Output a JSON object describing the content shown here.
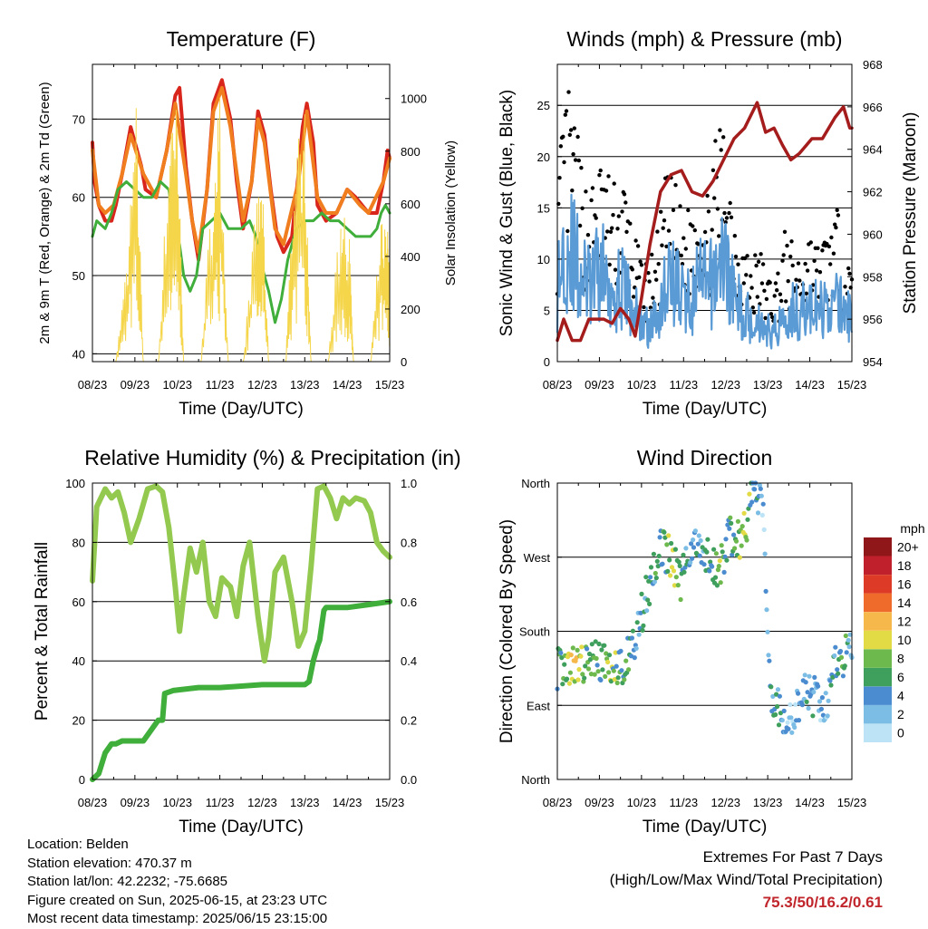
{
  "info": {
    "location": "Location: Belden",
    "elevation": "Station elevation: 470.37 m",
    "latlon": "Station lat/lon: 42.2232; -75.6685",
    "created": "Figure created on Sun, 2025-06-15, at 23:23 UTC",
    "recent": "Most recent data timestamp: 2025/06/15 23:15:00"
  },
  "extremes": {
    "title": "Extremes For Past 7 Days",
    "subtitle": "(High/Low/Max Wind/Total Precipitation)",
    "values": "75.3/50/16.2/0.61"
  },
  "colors": {
    "t2m": "#d9261c",
    "t9m": "#f07d1e",
    "dewpoint": "#3fae3a",
    "solar": "#f5d54a",
    "gust": "#000000",
    "sonic": "#5b9bd5",
    "pressure": "#a51c1c",
    "rh": "#92c94e",
    "precip": "#3fae3a"
  },
  "chart_data": [
    {
      "type": "line",
      "title": "Temperature (F)",
      "xlabel": "Time (Day/UTC)",
      "ylabel": "2m & 9m T (Red, Orange) & 2m Td (Green)",
      "ylabel_right": "Solar Insolation (Yellow)",
      "x_ticks": [
        "08/23",
        "09/23",
        "10/23",
        "11/23",
        "12/23",
        "13/23",
        "14/23",
        "15/23"
      ],
      "xlim": [
        0,
        7
      ],
      "ylim": [
        39,
        77
      ],
      "yticks": [
        40,
        50,
        60,
        70
      ],
      "ylim_right": [
        0,
        1130
      ],
      "yticks_right": [
        0,
        200,
        400,
        600,
        800,
        1000
      ],
      "grid": true,
      "series": [
        {
          "key": "t2m",
          "axis": "left",
          "x": [
            0,
            0.05,
            0.15,
            0.3,
            0.45,
            0.55,
            0.7,
            0.9,
            1.15,
            1.25,
            1.5,
            1.75,
            1.95,
            2.05,
            2.2,
            2.35,
            2.5,
            2.7,
            2.85,
            3.05,
            3.25,
            3.4,
            3.55,
            3.75,
            3.9,
            4.05,
            4.2,
            4.35,
            4.5,
            4.7,
            4.85,
            4.95,
            5.05,
            5.2,
            5.3,
            5.5,
            5.75,
            6.0,
            6.2,
            6.35,
            6.5,
            6.7,
            6.85,
            6.95,
            7.0
          ],
          "y": [
            67,
            62,
            59,
            57,
            57,
            59,
            63,
            69,
            64,
            61,
            60,
            66,
            73,
            74,
            64,
            57,
            52,
            61,
            72,
            75,
            70,
            62,
            56,
            62,
            71,
            68,
            61,
            55,
            53,
            55,
            63,
            69,
            72,
            67,
            59,
            57,
            58,
            61,
            60,
            59,
            58,
            58,
            62,
            66,
            65
          ]
        },
        {
          "key": "t9m",
          "axis": "left",
          "x": [
            0,
            0.15,
            0.3,
            0.5,
            0.7,
            0.9,
            1.2,
            1.5,
            1.75,
            1.95,
            2.2,
            2.35,
            2.5,
            2.7,
            2.85,
            3.05,
            3.25,
            3.55,
            3.75,
            3.9,
            4.05,
            4.3,
            4.5,
            4.85,
            5.05,
            5.3,
            5.5,
            5.75,
            6.0,
            6.3,
            6.5,
            6.85,
            7.0
          ],
          "y": [
            66,
            59,
            58,
            59,
            63,
            68,
            63,
            60,
            66,
            72,
            63,
            57,
            53,
            61,
            71,
            74,
            69,
            57,
            62,
            70,
            67,
            56,
            54,
            62,
            71,
            60,
            58,
            58,
            61,
            59,
            58,
            62,
            65
          ]
        },
        {
          "key": "dewpoint",
          "axis": "left",
          "x": [
            0,
            0.1,
            0.3,
            0.45,
            0.6,
            0.8,
            1.0,
            1.2,
            1.4,
            1.6,
            1.8,
            1.95,
            2.05,
            2.15,
            2.3,
            2.45,
            2.6,
            2.8,
            3.0,
            3.2,
            3.5,
            3.7,
            3.85,
            3.95,
            4.05,
            4.15,
            4.3,
            4.45,
            4.6,
            4.8,
            5.0,
            5.2,
            5.4,
            5.6,
            5.8,
            6.0,
            6.2,
            6.4,
            6.55,
            6.7,
            6.8,
            6.9,
            7.0
          ],
          "y": [
            55,
            57,
            56,
            58,
            61,
            62,
            61,
            60,
            60,
            62,
            61,
            55,
            54,
            50,
            48,
            50,
            56,
            57,
            58,
            56,
            56,
            57,
            55,
            52,
            50,
            48,
            44,
            47,
            52,
            56,
            57,
            57,
            58,
            57,
            57,
            56,
            55,
            55,
            55,
            56,
            58,
            59,
            58
          ]
        },
        {
          "key": "solar",
          "axis": "right",
          "style": "daily spikes",
          "x": [
            0.55,
            0.8,
            1.03,
            1.2,
            1.55,
            1.8,
            2.0,
            2.15,
            2.55,
            2.85,
            3.0,
            3.2,
            3.55,
            3.85,
            4.0,
            4.15,
            4.55,
            4.75,
            5.0,
            5.15,
            5.55,
            5.85,
            6.05,
            6.15,
            6.55,
            6.8,
            6.95,
            7.0
          ],
          "y": [
            0,
            380,
            1000,
            0,
            0,
            860,
            1000,
            0,
            0,
            780,
            1040,
            0,
            0,
            620,
            700,
            0,
            0,
            800,
            980,
            0,
            0,
            600,
            480,
            0,
            0,
            580,
            520,
            300
          ]
        }
      ]
    },
    {
      "type": "scatter",
      "title": "Winds (mph) & Pressure (mb)",
      "xlabel": "Time (Day/UTC)",
      "ylabel": "Sonic Wind & Gust (Blue, Black)",
      "ylabel_right": "Station Pressure (Maroon)",
      "x_ticks": [
        "08/23",
        "09/23",
        "10/23",
        "11/23",
        "12/23",
        "13/23",
        "14/23",
        "15/23"
      ],
      "xlim": [
        0,
        7
      ],
      "ylim": [
        0,
        29
      ],
      "yticks": [
        0,
        5,
        10,
        15,
        20,
        25
      ],
      "ylim_right": [
        954,
        968
      ],
      "yticks_right": [
        954,
        956,
        958,
        960,
        962,
        964,
        966,
        968
      ],
      "grid": true,
      "series": [
        {
          "key": "gust",
          "axis": "left",
          "style": "points",
          "x": [
            0,
            0.2,
            0.4,
            0.6,
            0.8,
            1.0,
            1.2,
            1.4,
            1.6,
            1.8,
            2.0,
            2.2,
            2.4,
            2.6,
            2.8,
            3.0,
            3.2,
            3.4,
            3.6,
            3.8,
            4.0,
            4.2,
            4.4,
            4.6,
            4.8,
            5.0,
            5.2,
            5.4,
            5.6,
            5.8,
            6.0,
            6.2,
            6.4,
            6.6,
            6.8,
            7.0
          ],
          "y": [
            12,
            19,
            17,
            13,
            12,
            14,
            13,
            12,
            13,
            9,
            7,
            7,
            9,
            13,
            12,
            10,
            11,
            14,
            11,
            16,
            17,
            11,
            9,
            7,
            8,
            6,
            6,
            9,
            8,
            8,
            9,
            8,
            9,
            11,
            8,
            6
          ]
        },
        {
          "key": "sonic",
          "axis": "left",
          "style": "band",
          "x": [
            0,
            0.2,
            0.4,
            0.6,
            0.8,
            1.0,
            1.2,
            1.4,
            1.6,
            1.8,
            2.0,
            2.2,
            2.4,
            2.6,
            2.8,
            3.0,
            3.2,
            3.4,
            3.6,
            3.8,
            4.0,
            4.2,
            4.4,
            4.6,
            4.8,
            5.0,
            5.2,
            5.4,
            5.6,
            5.8,
            6.0,
            6.2,
            6.4,
            6.6,
            6.8,
            7.0
          ],
          "y": [
            7,
            12,
            10,
            8,
            7,
            9,
            8,
            7,
            7,
            5,
            4,
            3,
            5,
            8,
            8,
            6,
            6,
            8,
            7,
            9,
            10,
            6,
            5,
            4,
            4,
            3,
            3,
            5,
            5,
            5,
            5,
            5,
            5,
            6,
            5,
            4
          ]
        },
        {
          "key": "pressure",
          "axis": "right",
          "x": [
            0,
            0.15,
            0.35,
            0.55,
            0.75,
            0.9,
            1.1,
            1.3,
            1.5,
            1.7,
            1.85,
            2.0,
            2.2,
            2.45,
            2.7,
            2.95,
            3.2,
            3.45,
            3.7,
            3.95,
            4.2,
            4.45,
            4.75,
            4.95,
            5.15,
            5.35,
            5.55,
            5.75,
            6.05,
            6.3,
            6.6,
            6.8,
            6.95,
            7.0
          ],
          "y": [
            955,
            956,
            955,
            955,
            956,
            956,
            956,
            955.8,
            956.5,
            956,
            955.2,
            957,
            959.5,
            962,
            962.8,
            963,
            962,
            961.8,
            962.5,
            963.5,
            964.5,
            965,
            966.2,
            964.8,
            965,
            964.2,
            963.5,
            963.8,
            964.5,
            964.5,
            965.5,
            966,
            965,
            965
          ]
        }
      ]
    },
    {
      "type": "line",
      "title": "Relative Humidity (%) & Precipitation (in)",
      "xlabel": "Time (Day/UTC)",
      "ylabel": "Percent & Total Rainfall",
      "x_ticks": [
        "08/23",
        "09/23",
        "10/23",
        "11/23",
        "12/23",
        "13/23",
        "14/23",
        "15/23"
      ],
      "xlim": [
        0,
        7
      ],
      "ylim": [
        0,
        100
      ],
      "yticks": [
        0,
        20,
        40,
        60,
        80,
        100
      ],
      "ylim_right": [
        0,
        1.0
      ],
      "yticks_right": [
        0.0,
        0.2,
        0.4,
        0.6,
        0.8,
        1.0
      ],
      "grid": true,
      "series": [
        {
          "key": "rh",
          "axis": "left",
          "x": [
            0,
            0.1,
            0.3,
            0.45,
            0.6,
            0.75,
            0.9,
            1.1,
            1.3,
            1.5,
            1.65,
            1.8,
            1.95,
            2.05,
            2.15,
            2.3,
            2.45,
            2.6,
            2.75,
            2.9,
            3.05,
            3.25,
            3.4,
            3.55,
            3.7,
            3.9,
            4.05,
            4.15,
            4.3,
            4.5,
            4.7,
            4.85,
            5.0,
            5.15,
            5.3,
            5.45,
            5.6,
            5.75,
            5.9,
            6.05,
            6.2,
            6.4,
            6.55,
            6.7,
            6.85,
            7.0
          ],
          "y": [
            67,
            92,
            98,
            95,
            97,
            90,
            80,
            88,
            98,
            99,
            97,
            85,
            65,
            50,
            62,
            78,
            70,
            80,
            60,
            55,
            68,
            65,
            55,
            72,
            80,
            55,
            40,
            48,
            70,
            75,
            60,
            45,
            50,
            72,
            98,
            99,
            95,
            88,
            95,
            93,
            95,
            94,
            90,
            80,
            77,
            75
          ]
        },
        {
          "key": "precip",
          "axis": "right",
          "style": "cumulative",
          "x": [
            0,
            0.15,
            0.3,
            0.45,
            0.55,
            0.7,
            0.9,
            1.2,
            1.45,
            1.55,
            1.65,
            1.7,
            1.9,
            2.5,
            3.0,
            4.0,
            4.5,
            5.0,
            5.1,
            5.2,
            5.3,
            5.35,
            5.45,
            5.5,
            6.0,
            6.5,
            7.0
          ],
          "y": [
            0,
            0.02,
            0.09,
            0.12,
            0.12,
            0.13,
            0.13,
            0.13,
            0.18,
            0.2,
            0.2,
            0.29,
            0.3,
            0.31,
            0.31,
            0.32,
            0.32,
            0.32,
            0.33,
            0.4,
            0.45,
            0.47,
            0.57,
            0.58,
            0.58,
            0.59,
            0.6
          ]
        }
      ]
    },
    {
      "type": "scatter",
      "title": "Wind Direction",
      "xlabel": "Time (Day/UTC)",
      "ylabel": "Direction (Colored By Speed)",
      "x_ticks": [
        "08/23",
        "09/23",
        "10/23",
        "11/23",
        "12/23",
        "13/23",
        "14/23",
        "15/23"
      ],
      "xlim": [
        0,
        7
      ],
      "ylim": [
        0,
        360
      ],
      "yticks": [
        0,
        90,
        180,
        270,
        360
      ],
      "ytick_labels": [
        "North",
        "East",
        "South",
        "West",
        "North"
      ],
      "grid": true,
      "colorbar": {
        "title": "mph",
        "labels": [
          "0",
          "2",
          "4",
          "6",
          "8",
          "10",
          "12",
          "14",
          "16",
          "18",
          "20+"
        ],
        "colors": [
          "#bde4f6",
          "#7cbde6",
          "#4a8ccf",
          "#3f9f5d",
          "#6db94e",
          "#e3db45",
          "#f6b84b",
          "#ef6b2c",
          "#dd3b27",
          "#c0202b",
          "#8f1719"
        ]
      },
      "series": [
        {
          "name": "",
          "style": "points colored by speed",
          "x": [
            0.05,
            0.2,
            0.35,
            0.5,
            0.65,
            0.8,
            1.0,
            1.2,
            1.4,
            1.6,
            1.8,
            2.0,
            2.1,
            2.3,
            2.45,
            2.6,
            2.75,
            2.9,
            3.05,
            3.2,
            3.4,
            3.6,
            3.75,
            3.9,
            4.05,
            4.2,
            4.35,
            4.5,
            4.6,
            4.75,
            4.9,
            5.05,
            5.2,
            5.4,
            5.6,
            5.8,
            6.0,
            6.2,
            6.4,
            6.6,
            6.8,
            7.0
          ],
          "y": [
            135,
            140,
            138,
            137,
            140,
            142,
            145,
            140,
            138,
            142,
            160,
            200,
            225,
            250,
            280,
            275,
            265,
            240,
            255,
            280,
            285,
            270,
            250,
            265,
            290,
            300,
            290,
            310,
            340,
            350,
            330,
            115,
            90,
            75,
            70,
            100,
            105,
            95,
            85,
            140,
            150,
            160
          ],
          "speed": [
            6,
            9,
            11,
            10,
            8,
            9,
            7,
            9,
            8,
            7,
            5,
            4,
            5,
            6,
            7,
            8,
            9,
            8,
            6,
            4,
            5,
            6,
            7,
            8,
            6,
            7,
            10,
            11,
            6,
            5,
            3,
            4,
            6,
            5,
            3,
            4,
            5,
            3,
            4,
            6,
            7,
            5
          ]
        }
      ]
    }
  ]
}
